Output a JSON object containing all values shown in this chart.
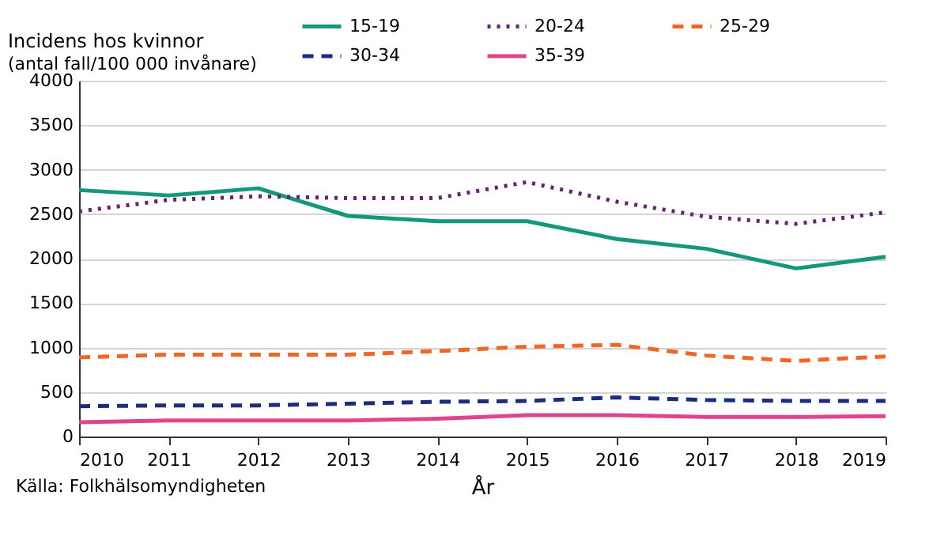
{
  "chart_data": {
    "type": "line",
    "title": "Incidens hos kvinnor",
    "subtitle": "(antal fall/100 000 invånare)",
    "xlabel": "År",
    "annotations": [
      "Källa: Folkhälsomyndigheten"
    ],
    "x": [
      2010,
      2011,
      2012,
      2013,
      2014,
      2015,
      2016,
      2017,
      2018,
      2019
    ],
    "series": [
      {
        "name": "15-19",
        "color": "#13997a",
        "line_style": "solid",
        "values": [
          2770,
          2710,
          2790,
          2480,
          2420,
          2420,
          2220,
          2110,
          1890,
          2020
        ]
      },
      {
        "name": "20-24",
        "color": "#6b1f7a",
        "line_style": "dotted",
        "values": [
          2530,
          2660,
          2700,
          2680,
          2680,
          2860,
          2640,
          2470,
          2390,
          2520
        ]
      },
      {
        "name": "25-29",
        "color": "#f26522",
        "line_style": "dashed",
        "values": [
          890,
          920,
          920,
          920,
          960,
          1010,
          1030,
          910,
          850,
          900
        ]
      },
      {
        "name": "30-34",
        "color": "#1a2d80",
        "line_style": "dashed",
        "values": [
          340,
          350,
          350,
          370,
          390,
          400,
          440,
          410,
          400,
          400
        ]
      },
      {
        "name": "35-39",
        "color": "#e0448a",
        "line_style": "solid",
        "values": [
          160,
          180,
          180,
          180,
          200,
          240,
          240,
          220,
          220,
          230
        ]
      }
    ],
    "xlim": [
      2010,
      2019
    ],
    "xticks": [
      2010,
      2011,
      2012,
      2013,
      2014,
      2015,
      2016,
      2017,
      2018,
      2019
    ],
    "ylim": [
      0,
      4000
    ],
    "yticks": [
      0,
      500,
      1000,
      1500,
      2000,
      2500,
      3000,
      3500,
      4000
    ],
    "grid": "y",
    "legend": "top",
    "marker": "none"
  }
}
